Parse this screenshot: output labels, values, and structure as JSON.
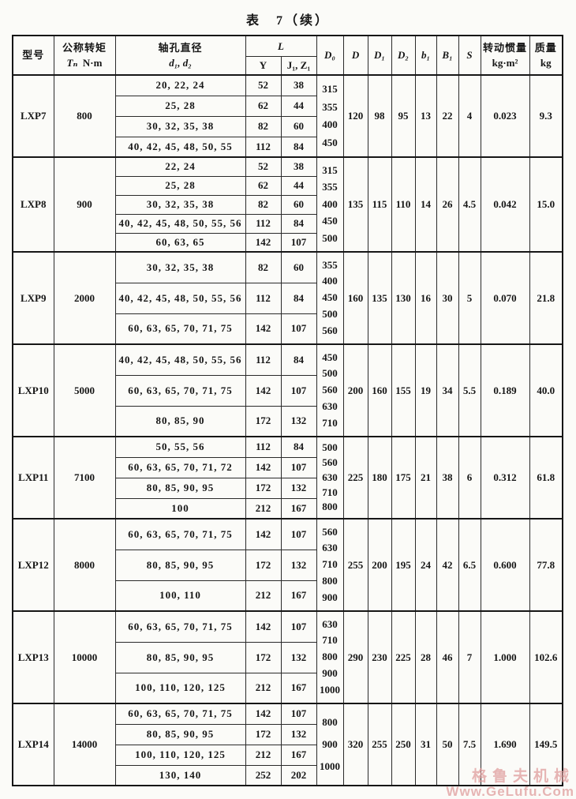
{
  "title": "表　7（续）",
  "header": {
    "model": "型号",
    "torque_name": "公称转矩",
    "torque_symbol": "Tₙ",
    "torque_unit": "N·m",
    "bore_name": "轴孔直径",
    "bore_symbol": "d₁, d₂",
    "L": "L",
    "Y": "Y",
    "JZ": "J₁, Z₁",
    "D0": "D₀",
    "D": "D",
    "D1": "D₁",
    "D2": "D₂",
    "b1": "b₁",
    "B1": "B₁",
    "S": "S",
    "inertia_name": "转动惯量",
    "inertia_unit": "kg·m²",
    "mass_name": "质量",
    "mass_unit": "kg"
  },
  "sections": [
    {
      "model": "LXP7",
      "torque": "800",
      "bores": [
        {
          "d": "20, 22, 24",
          "Y": "52",
          "JZ": "38"
        },
        {
          "d": "25, 28",
          "Y": "62",
          "JZ": "44"
        },
        {
          "d": "30, 32, 35, 38",
          "Y": "82",
          "JZ": "60"
        },
        {
          "d": "40, 42, 45, 48, 50, 55",
          "Y": "112",
          "JZ": "84"
        }
      ],
      "D0": [
        "315",
        "355",
        "400",
        "450"
      ],
      "D": "120",
      "D1": "98",
      "D2": "95",
      "b1": "13",
      "B1": "22",
      "S": "4",
      "inertia": "0.023",
      "mass": "9.3"
    },
    {
      "model": "LXP8",
      "torque": "900",
      "bores": [
        {
          "d": "22, 24",
          "Y": "52",
          "JZ": "38"
        },
        {
          "d": "25, 28",
          "Y": "62",
          "JZ": "44"
        },
        {
          "d": "30, 32, 35, 38",
          "Y": "82",
          "JZ": "60"
        },
        {
          "d": "40, 42, 45, 48, 50, 55, 56",
          "Y": "112",
          "JZ": "84"
        },
        {
          "d": "60, 63, 65",
          "Y": "142",
          "JZ": "107"
        }
      ],
      "D0": [
        "315",
        "355",
        "400",
        "450",
        "500"
      ],
      "D": "135",
      "D1": "115",
      "D2": "110",
      "b1": "14",
      "B1": "26",
      "S": "4.5",
      "inertia": "0.042",
      "mass": "15.0"
    },
    {
      "model": "LXP9",
      "torque": "2000",
      "bores": [
        {
          "d": "30, 32, 35, 38",
          "Y": "82",
          "JZ": "60"
        },
        {
          "d": "40, 42, 45, 48, 50, 55, 56",
          "Y": "112",
          "JZ": "84"
        },
        {
          "d": "60, 63, 65, 70, 71, 75",
          "Y": "142",
          "JZ": "107"
        }
      ],
      "D0": [
        "355",
        "400",
        "450",
        "500",
        "560"
      ],
      "D": "160",
      "D1": "135",
      "D2": "130",
      "b1": "16",
      "B1": "30",
      "S": "5",
      "inertia": "0.070",
      "mass": "21.8"
    },
    {
      "model": "LXP10",
      "torque": "5000",
      "bores": [
        {
          "d": "40, 42, 45, 48, 50, 55, 56",
          "Y": "112",
          "JZ": "84"
        },
        {
          "d": "60, 63, 65, 70, 71, 75",
          "Y": "142",
          "JZ": "107"
        },
        {
          "d": "80, 85, 90",
          "Y": "172",
          "JZ": "132"
        }
      ],
      "D0": [
        "450",
        "500",
        "560",
        "630",
        "710"
      ],
      "D": "200",
      "D1": "160",
      "D2": "155",
      "b1": "19",
      "B1": "34",
      "S": "5.5",
      "inertia": "0.189",
      "mass": "40.0"
    },
    {
      "model": "LXP11",
      "torque": "7100",
      "bores": [
        {
          "d": "50, 55, 56",
          "Y": "112",
          "JZ": "84"
        },
        {
          "d": "60, 63, 65, 70, 71, 72",
          "Y": "142",
          "JZ": "107"
        },
        {
          "d": "80, 85, 90, 95",
          "Y": "172",
          "JZ": "132"
        },
        {
          "d": "100",
          "Y": "212",
          "JZ": "167"
        }
      ],
      "D0": [
        "500",
        "560",
        "630",
        "710",
        "800"
      ],
      "D": "225",
      "D1": "180",
      "D2": "175",
      "b1": "21",
      "B1": "38",
      "S": "6",
      "inertia": "0.312",
      "mass": "61.8"
    },
    {
      "model": "LXP12",
      "torque": "8000",
      "bores": [
        {
          "d": "60, 63, 65, 70, 71, 75",
          "Y": "142",
          "JZ": "107"
        },
        {
          "d": "80, 85, 90, 95",
          "Y": "172",
          "JZ": "132"
        },
        {
          "d": "100, 110",
          "Y": "212",
          "JZ": "167"
        }
      ],
      "D0": [
        "560",
        "630",
        "710",
        "800",
        "900"
      ],
      "D": "255",
      "D1": "200",
      "D2": "195",
      "b1": "24",
      "B1": "42",
      "S": "6.5",
      "inertia": "0.600",
      "mass": "77.8"
    },
    {
      "model": "LXP13",
      "torque": "10000",
      "bores": [
        {
          "d": "60, 63, 65, 70, 71, 75",
          "Y": "142",
          "JZ": "107"
        },
        {
          "d": "80, 85, 90, 95",
          "Y": "172",
          "JZ": "132"
        },
        {
          "d": "100, 110, 120, 125",
          "Y": "212",
          "JZ": "167"
        }
      ],
      "D0": [
        "630",
        "710",
        "800",
        "900",
        "1000"
      ],
      "D": "290",
      "D1": "230",
      "D2": "225",
      "b1": "28",
      "B1": "46",
      "S": "7",
      "inertia": "1.000",
      "mass": "102.6"
    },
    {
      "model": "LXP14",
      "torque": "14000",
      "bores": [
        {
          "d": "60, 63, 65, 70, 71, 75",
          "Y": "142",
          "JZ": "107"
        },
        {
          "d": "80, 85, 90, 95",
          "Y": "172",
          "JZ": "132"
        },
        {
          "d": "100, 110, 120, 125",
          "Y": "212",
          "JZ": "167"
        },
        {
          "d": "130, 140",
          "Y": "252",
          "JZ": "202"
        }
      ],
      "D0": [
        "800",
        "900",
        "1000"
      ],
      "D": "320",
      "D1": "255",
      "D2": "250",
      "b1": "31",
      "B1": "50",
      "S": "7.5",
      "inertia": "1.690",
      "mass": "149.5"
    }
  ],
  "watermark": {
    "line1": "格鲁夫机械",
    "line2": "Www.GeLufu.Com",
    "color": "#e09d9d"
  }
}
